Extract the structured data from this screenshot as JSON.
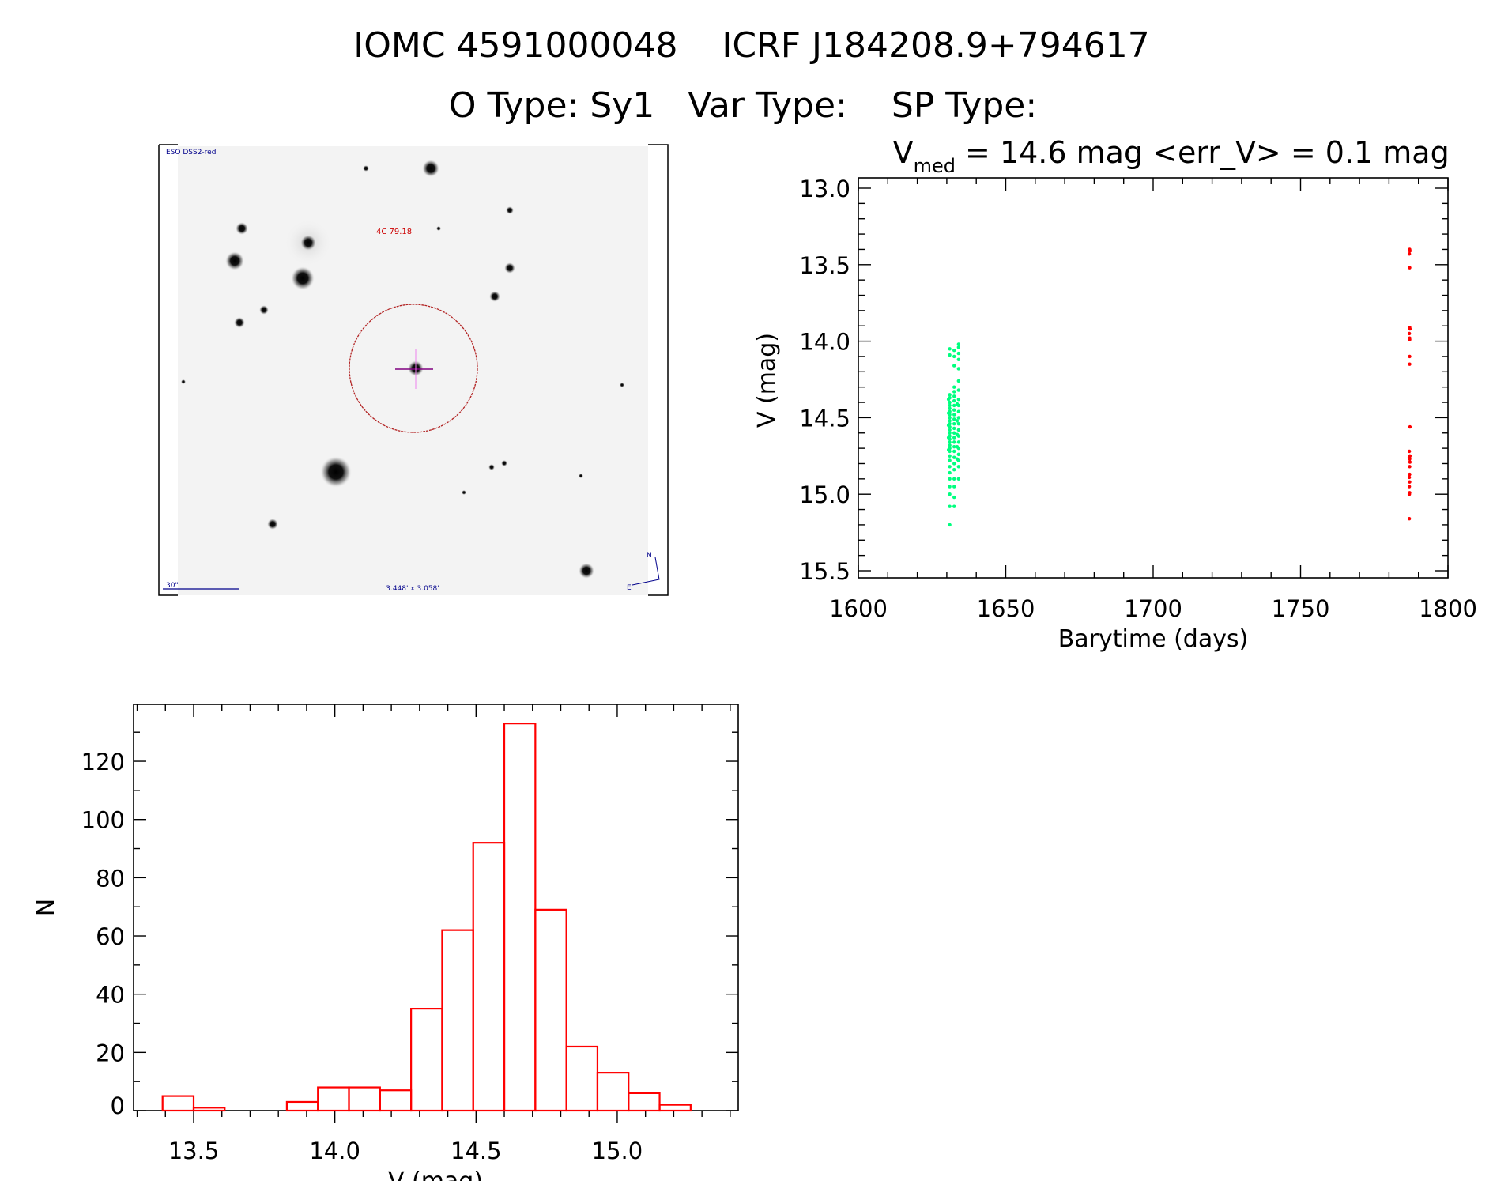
{
  "header": {
    "line1": "IOMC 4591000048    ICRF J184208.9+794617",
    "line2": "O Type: Sy1   Var Type:    SP Type:"
  },
  "finder_image": {
    "survey_label": "ESO DSS2-red",
    "object_label": "4C 79.18",
    "scale_label": "30\"",
    "fov_label": "3.448' x 3.058'",
    "compass_n": "N",
    "compass_e": "E",
    "label_color": "#00008b",
    "object_color": "#cc0000"
  },
  "chart_data": [
    {
      "type": "scatter",
      "title_prefix": "V",
      "title_sub": "med",
      "title_rest": " = 14.6 mag <err_V> = 0.1 mag",
      "xlabel": "Barytime (days)",
      "ylabel": "V (mag)",
      "xlim": [
        1600,
        1800
      ],
      "ylim": [
        15.5,
        13.0
      ],
      "y_inverted": true,
      "xticks": [
        "1600",
        "1650",
        "1700",
        "1750",
        "1800"
      ],
      "yticks": [
        "13.0",
        "13.5",
        "14.0",
        "14.5",
        "15.0",
        "15.5"
      ],
      "grid": false,
      "series": [
        {
          "color": "#00ff7f",
          "x": [
            1631,
            1631,
            1631,
            1631,
            1631,
            1631,
            1631,
            1631,
            1631,
            1631,
            1631,
            1631,
            1631,
            1631,
            1631,
            1631,
            1631,
            1631,
            1631,
            1631,
            1631,
            1631,
            1631,
            1631,
            1631,
            1631,
            1631,
            1631,
            1631,
            1631,
            1632.5,
            1632.5,
            1632.5,
            1632.5,
            1632.5,
            1632.5,
            1632.5,
            1632.5,
            1632.5,
            1632.5,
            1632.5,
            1632.5,
            1632.5,
            1632.5,
            1632.5,
            1632.5,
            1632.5,
            1632.5,
            1632.5,
            1632.5,
            1632.5,
            1632.5,
            1632.5,
            1632.5,
            1632.5,
            1634,
            1634,
            1634,
            1634,
            1634,
            1634,
            1634,
            1634,
            1634,
            1634,
            1634,
            1634,
            1634,
            1634,
            1634,
            1634,
            1634,
            1634,
            1634,
            1634,
            1630.6,
            1630.6,
            1630.6,
            1630.6,
            1630.6,
            1633.5,
            1633.5,
            1633.5,
            1633.5,
            1633.5
          ],
          "y": [
            14.05,
            14.09,
            14.35,
            14.37,
            14.4,
            14.42,
            14.44,
            14.46,
            14.48,
            14.5,
            14.52,
            14.54,
            14.56,
            14.58,
            14.6,
            14.62,
            14.64,
            14.66,
            14.68,
            14.7,
            14.72,
            14.75,
            14.78,
            14.82,
            14.86,
            14.9,
            14.95,
            15.0,
            15.08,
            15.2,
            14.06,
            14.1,
            14.16,
            14.3,
            14.33,
            14.36,
            14.39,
            14.42,
            14.45,
            14.48,
            14.51,
            14.54,
            14.57,
            14.6,
            14.63,
            14.66,
            14.69,
            14.72,
            14.76,
            14.8,
            14.84,
            14.9,
            14.95,
            15.02,
            15.08,
            14.02,
            14.04,
            14.08,
            14.12,
            14.18,
            14.26,
            14.32,
            14.38,
            14.42,
            14.46,
            14.5,
            14.54,
            14.58,
            14.62,
            14.66,
            14.7,
            14.74,
            14.78,
            14.82,
            14.9,
            14.38,
            14.47,
            14.55,
            14.63,
            14.71,
            14.41,
            14.52,
            14.61,
            14.69,
            14.77
          ]
        },
        {
          "color": "#ff0000",
          "x": [
            1787,
            1787.1,
            1786.9,
            1787,
            1787,
            1787.1,
            1786.9,
            1787,
            1787,
            1787,
            1787,
            1787.1,
            1786.9,
            1787.1,
            1786.9,
            1787,
            1787.1,
            1787,
            1787,
            1786.9,
            1787,
            1786.9,
            1787,
            1786.9,
            1786.9
          ],
          "y": [
            13.4,
            13.41,
            13.43,
            13.52,
            13.91,
            13.92,
            13.95,
            13.98,
            13.99,
            14.1,
            14.15,
            14.56,
            14.72,
            14.75,
            14.76,
            14.77,
            14.79,
            14.82,
            14.87,
            14.89,
            14.92,
            14.95,
            14.99,
            15.0,
            15.16
          ]
        }
      ]
    },
    {
      "type": "bar",
      "style": "histogram-outline",
      "xlabel": "V (mag)",
      "ylabel": "N",
      "xlim": [
        13.29,
        15.43
      ],
      "ylim": [
        0,
        139.5
      ],
      "xticks": [
        "13.5",
        "14.0",
        "14.5",
        "15.0"
      ],
      "yticks": [
        "0",
        "20",
        "40",
        "60",
        "80",
        "100",
        "120"
      ],
      "grid": false,
      "color": "#ff0000",
      "bin_edges": [
        13.39,
        13.5,
        13.61,
        13.72,
        13.83,
        13.94,
        14.05,
        14.16,
        14.27,
        14.38,
        14.49,
        14.6,
        14.71,
        14.82,
        14.93,
        15.04,
        15.15,
        15.26
      ],
      "values": [
        5,
        1,
        0,
        0,
        3,
        8,
        8,
        7,
        35,
        62,
        92,
        133,
        69,
        22,
        13,
        6,
        2
      ]
    }
  ]
}
